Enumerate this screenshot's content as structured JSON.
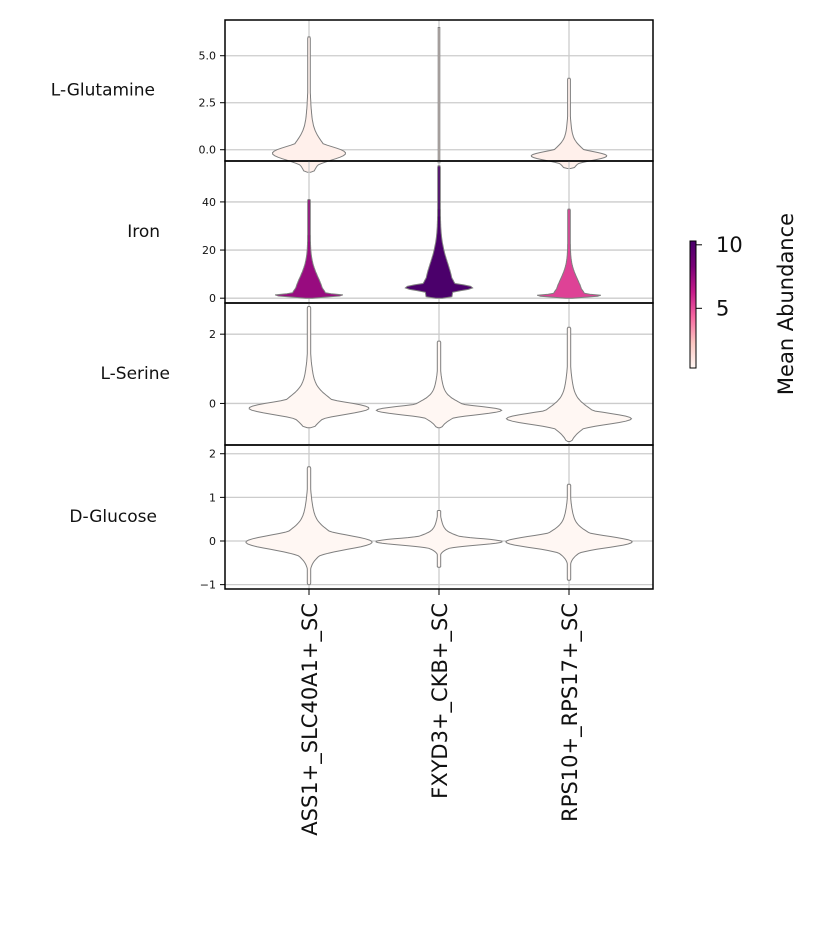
{
  "chart_data": {
    "type": "stacked-violin",
    "categories": [
      "ASS1+_SLC40A1+_SC",
      "FXYD3+_CKB+_SC",
      "RPS10+_RPS17+_SC"
    ],
    "rows": [
      {
        "label": "L-Glutamine",
        "ylim": [
          -0.6,
          6.9
        ],
        "ticks": [
          0.0,
          2.5,
          5.0
        ],
        "tick_labels": [
          "0.0",
          "2.5",
          "5.0"
        ],
        "violins": [
          {
            "min": -1.2,
            "max": 6.0,
            "mean_abundance": 0.6
          },
          {
            "min": -0.7,
            "max": 6.5,
            "mean_abundance": 1.0
          },
          {
            "min": -1.0,
            "max": 3.8,
            "mean_abundance": 0.6
          }
        ]
      },
      {
        "label": "Iron",
        "ylim": [
          -2,
          57
        ],
        "ticks": [
          0,
          20,
          40
        ],
        "tick_labels": [
          "0",
          "20",
          "40"
        ],
        "violins": [
          {
            "min": 0,
            "max": 41,
            "mean_abundance": 7.5
          },
          {
            "min": 0,
            "max": 55,
            "mean_abundance": 10.2
          },
          {
            "min": 0,
            "max": 37,
            "mean_abundance": 5.3
          }
        ]
      },
      {
        "label": "L-Serine",
        "ylim": [
          -1.2,
          2.9
        ],
        "ticks": [
          0,
          2
        ],
        "tick_labels": [
          "0",
          "2"
        ],
        "violins": [
          {
            "min": -0.7,
            "max": 2.8,
            "mean_abundance": 0.3
          },
          {
            "min": -0.7,
            "max": 1.8,
            "mean_abundance": 0.3
          },
          {
            "min": -1.1,
            "max": 2.2,
            "mean_abundance": 0.3
          }
        ]
      },
      {
        "label": "D-Glucose",
        "ylim": [
          -1.1,
          2.2
        ],
        "ticks": [
          -1,
          0,
          1,
          2
        ],
        "tick_labels": [
          "−1",
          "0",
          "1",
          "2"
        ],
        "violins": [
          {
            "min": -1.0,
            "max": 1.7,
            "mean_abundance": 0.3
          },
          {
            "min": -0.6,
            "max": 0.7,
            "mean_abundance": 0.3
          },
          {
            "min": -0.9,
            "max": 1.3,
            "mean_abundance": 0.3
          }
        ]
      }
    ],
    "colorbar": {
      "label": "Mean Abundance",
      "range": [
        0.3,
        10.3
      ],
      "ticks": [
        5,
        10
      ],
      "tick_labels": [
        "5",
        "10"
      ],
      "colors": [
        "#fff7f3",
        "#fcc5c0",
        "#f768a1",
        "#c51b8a",
        "#7a0177",
        "#49006a"
      ]
    },
    "grid": true
  }
}
